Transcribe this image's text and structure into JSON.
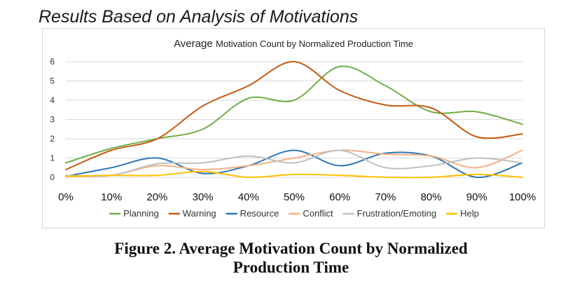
{
  "heading": "Results Based on Analysis of Motivations",
  "caption": {
    "line1": "Figure 2. Average Motivation Count by Normalized",
    "line2": "Production Time"
  },
  "chart_data": {
    "type": "line",
    "title_lead": "Average",
    "title_rest": "Motivation Count by Normalized Production Time",
    "xlabel": "",
    "ylabel": "",
    "x": [
      "0%",
      "10%",
      "20%",
      "30%",
      "40%",
      "50%",
      "60%",
      "70%",
      "80%",
      "90%",
      "100%"
    ],
    "ylim": [
      0,
      6
    ],
    "yticks": [
      "0",
      "1",
      "2",
      "3",
      "4",
      "5",
      "6"
    ],
    "grid": true,
    "legend": "bottom",
    "smooth": true,
    "series": [
      {
        "name": "Planning",
        "color": "#70AD47",
        "values": [
          0.75,
          1.5,
          2.0,
          2.5,
          4.1,
          4.0,
          5.75,
          4.75,
          3.4,
          3.4,
          2.75
        ]
      },
      {
        "name": "Warning",
        "color": "#C55A11",
        "values": [
          0.4,
          1.4,
          2.0,
          3.7,
          4.75,
          6.0,
          4.5,
          3.75,
          3.6,
          2.1,
          2.25
        ]
      },
      {
        "name": "Resource",
        "color": "#2E75B6",
        "values": [
          0.05,
          0.5,
          1.0,
          0.2,
          0.6,
          1.4,
          0.6,
          1.25,
          1.1,
          0.0,
          0.75
        ]
      },
      {
        "name": "Conflict",
        "color": "#F4B183",
        "values": [
          0.05,
          0.1,
          0.6,
          0.4,
          0.6,
          1.0,
          1.4,
          1.2,
          1.1,
          0.5,
          1.4
        ]
      },
      {
        "name": "Frustration/Emoting",
        "color": "#BFBFBF",
        "values": [
          0.1,
          0.1,
          0.7,
          0.75,
          1.1,
          0.75,
          1.4,
          0.5,
          0.6,
          1.0,
          0.75
        ]
      },
      {
        "name": "Help",
        "color": "#FFC000",
        "values": [
          0.05,
          0.1,
          0.1,
          0.3,
          0.0,
          0.15,
          0.1,
          0.0,
          0.0,
          0.15,
          0.0
        ]
      }
    ]
  }
}
